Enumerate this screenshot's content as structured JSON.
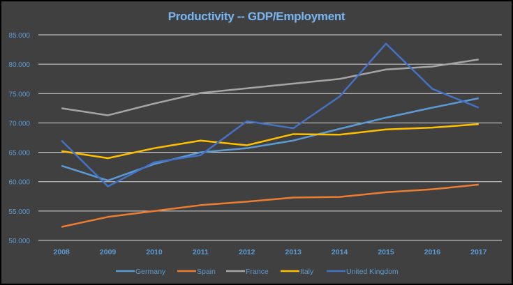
{
  "chart_data": {
    "type": "line",
    "title": "Productivity -- GDP/Employment",
    "xlabel": "",
    "ylabel": "",
    "categories": [
      "2008",
      "2009",
      "2010",
      "2011",
      "2012",
      "2013",
      "2014",
      "2015",
      "2016",
      "2017"
    ],
    "ylim": [
      50000,
      85000
    ],
    "yticks": [
      "50.000",
      "55.000",
      "60.000",
      "65.000",
      "70.000",
      "75.000",
      "80.000",
      "85.000"
    ],
    "grid": true,
    "legend": "bottom",
    "series": [
      {
        "name": "Germany",
        "color": "#5B9BD5",
        "values": [
          62700,
          60200,
          63000,
          65000,
          65700,
          67000,
          69000,
          70900,
          72600,
          74200
        ]
      },
      {
        "name": "Spain",
        "color": "#ED7D31",
        "values": [
          52300,
          54000,
          55000,
          56000,
          56600,
          57300,
          57400,
          58200,
          58700,
          59500
        ]
      },
      {
        "name": "France",
        "color": "#A5A5A5",
        "values": [
          72500,
          71300,
          73300,
          75100,
          75900,
          76700,
          77500,
          79100,
          79600,
          80800
        ]
      },
      {
        "name": "Italy",
        "color": "#FFC000",
        "values": [
          65200,
          64000,
          65700,
          67000,
          66200,
          68100,
          68000,
          68900,
          69200,
          69800
        ]
      },
      {
        "name": "United Kingdom",
        "color": "#4472C4",
        "values": [
          67000,
          59200,
          63300,
          64500,
          70300,
          69100,
          74500,
          83500,
          75800,
          72600
        ]
      }
    ]
  }
}
